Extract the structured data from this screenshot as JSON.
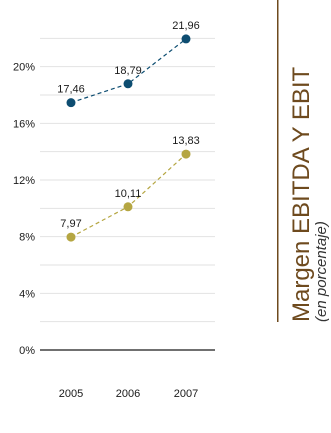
{
  "chart_data": {
    "type": "line",
    "title": "Margen EBITDA Y EBIT",
    "subtitle": "(en porcentaje)",
    "x": [
      "2005",
      "2006",
      "2007"
    ],
    "ylim": [
      0,
      24
    ],
    "yticks": [
      0,
      4,
      8,
      12,
      16,
      20
    ],
    "ytick_labels": [
      "0%",
      "4%",
      "8%",
      "12%",
      "16%",
      "20%"
    ],
    "grid": true,
    "legend": "none",
    "series": [
      {
        "values": [
          17.46,
          18.79,
          21.96
        ],
        "labels": [
          "17,46",
          "18,79",
          "21,96"
        ],
        "color": "#0d4d71",
        "style": "dashed"
      },
      {
        "values": [
          7.97,
          10.11,
          13.83
        ],
        "labels": [
          "7,97",
          "10,11",
          "13,83"
        ],
        "color": "#b5a642",
        "style": "dashed"
      }
    ]
  },
  "colors": {
    "title_rule": "#6e4a1e",
    "grid": "#e2e2e2",
    "axis": "#1a1a1a"
  }
}
